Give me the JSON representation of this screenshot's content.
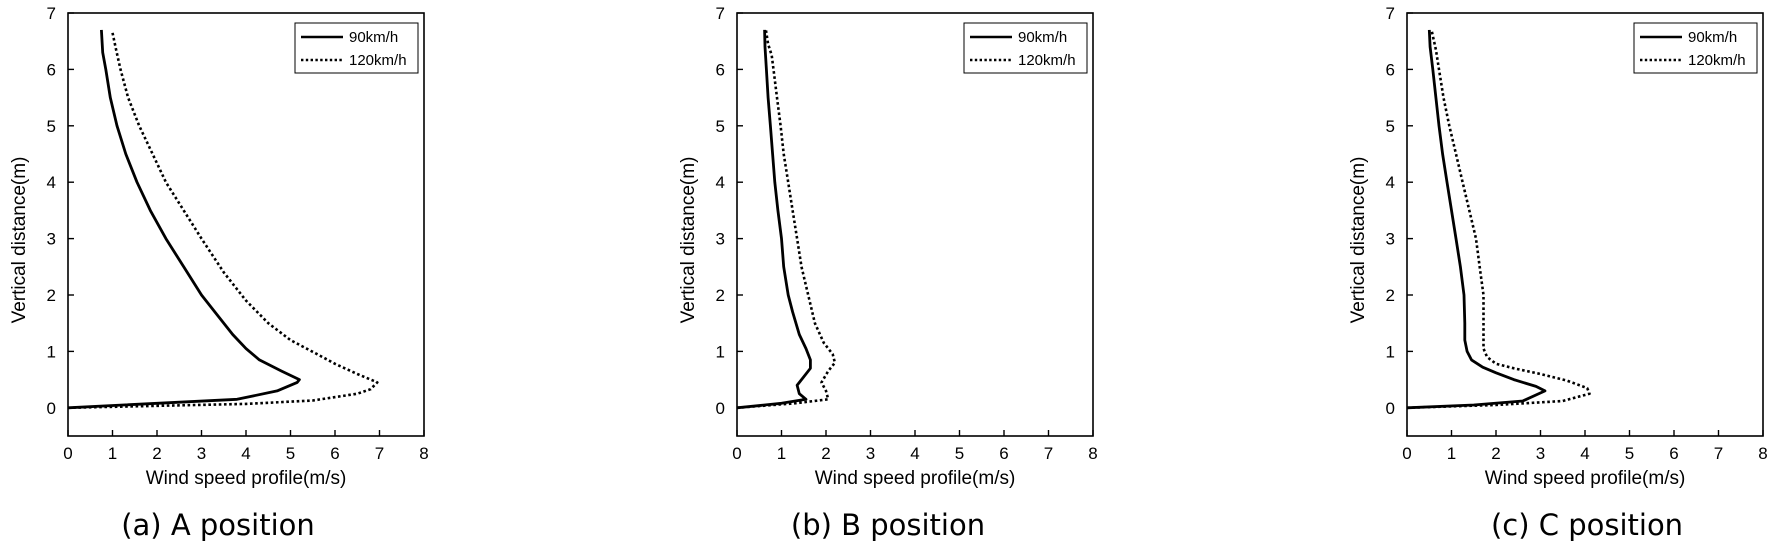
{
  "chart_data": [
    {
      "type": "line",
      "caption": "(a) A position",
      "xlabel": "Wind speed profile(m/s)",
      "ylabel": "Vertical distance(m)",
      "xlim": [
        0,
        8
      ],
      "ylim": [
        -0.5,
        7
      ],
      "xticks": [
        "0",
        "1",
        "2",
        "3",
        "4",
        "5",
        "6",
        "7",
        "8"
      ],
      "yticks": [
        "0",
        "1",
        "2",
        "3",
        "4",
        "5",
        "6",
        "7"
      ],
      "legend_position": "top-right",
      "series": [
        {
          "name": "90km/h",
          "style": "solid",
          "points": [
            [
              0,
              0
            ],
            [
              3.8,
              0.15
            ],
            [
              4.7,
              0.3
            ],
            [
              5.15,
              0.45
            ],
            [
              5.2,
              0.5
            ],
            [
              4.8,
              0.65
            ],
            [
              4.3,
              0.85
            ],
            [
              4.0,
              1.05
            ],
            [
              3.7,
              1.3
            ],
            [
              3.3,
              1.7
            ],
            [
              3.0,
              2.0
            ],
            [
              2.6,
              2.5
            ],
            [
              2.2,
              3.0
            ],
            [
              1.85,
              3.5
            ],
            [
              1.55,
              4.0
            ],
            [
              1.3,
              4.5
            ],
            [
              1.1,
              5.0
            ],
            [
              0.95,
              5.5
            ],
            [
              0.85,
              6.0
            ],
            [
              0.78,
              6.3
            ],
            [
              0.75,
              6.7
            ]
          ]
        },
        {
          "name": "120km/h",
          "style": "dotted",
          "points": [
            [
              0,
              0
            ],
            [
              4.0,
              0.07
            ],
            [
              5.5,
              0.13
            ],
            [
              6.5,
              0.25
            ],
            [
              6.8,
              0.33
            ],
            [
              6.95,
              0.45
            ],
            [
              6.5,
              0.6
            ],
            [
              6.0,
              0.78
            ],
            [
              5.6,
              0.95
            ],
            [
              5.0,
              1.2
            ],
            [
              4.5,
              1.5
            ],
            [
              4.0,
              1.9
            ],
            [
              3.5,
              2.4
            ],
            [
              3.0,
              3.0
            ],
            [
              2.6,
              3.5
            ],
            [
              2.2,
              4.0
            ],
            [
              1.9,
              4.5
            ],
            [
              1.6,
              5.0
            ],
            [
              1.35,
              5.5
            ],
            [
              1.18,
              6.0
            ],
            [
              1.08,
              6.35
            ],
            [
              1.0,
              6.65
            ]
          ]
        }
      ]
    },
    {
      "type": "line",
      "caption": "(b) B position",
      "xlabel": "Wind speed profile(m/s)",
      "ylabel": "Vertical distance(m)",
      "xlim": [
        0,
        8
      ],
      "ylim": [
        -0.5,
        7
      ],
      "xticks": [
        "0",
        "1",
        "2",
        "3",
        "4",
        "5",
        "6",
        "7",
        "8"
      ],
      "yticks": [
        "0",
        "1",
        "2",
        "3",
        "4",
        "5",
        "6",
        "7"
      ],
      "legend_position": "top-right",
      "series": [
        {
          "name": "90km/h",
          "style": "solid",
          "points": [
            [
              0,
              0
            ],
            [
              1.0,
              0.08
            ],
            [
              1.55,
              0.15
            ],
            [
              1.4,
              0.25
            ],
            [
              1.35,
              0.4
            ],
            [
              1.5,
              0.55
            ],
            [
              1.65,
              0.7
            ],
            [
              1.65,
              0.85
            ],
            [
              1.55,
              1.05
            ],
            [
              1.4,
              1.3
            ],
            [
              1.25,
              1.7
            ],
            [
              1.15,
              2.0
            ],
            [
              1.05,
              2.5
            ],
            [
              1.0,
              3.0
            ],
            [
              0.92,
              3.5
            ],
            [
              0.85,
              4.0
            ],
            [
              0.8,
              4.5
            ],
            [
              0.75,
              5.0
            ],
            [
              0.7,
              5.5
            ],
            [
              0.66,
              6.0
            ],
            [
              0.63,
              6.4
            ],
            [
              0.62,
              6.7
            ]
          ]
        },
        {
          "name": "120km/h",
          "style": "dotted",
          "points": [
            [
              0,
              0
            ],
            [
              1.3,
              0.08
            ],
            [
              2.05,
              0.15
            ],
            [
              2.0,
              0.3
            ],
            [
              1.9,
              0.45
            ],
            [
              2.05,
              0.65
            ],
            [
              2.2,
              0.8
            ],
            [
              2.15,
              0.95
            ],
            [
              1.95,
              1.15
            ],
            [
              1.75,
              1.5
            ],
            [
              1.6,
              2.0
            ],
            [
              1.45,
              2.5
            ],
            [
              1.35,
              3.0
            ],
            [
              1.25,
              3.5
            ],
            [
              1.15,
              4.0
            ],
            [
              1.05,
              4.5
            ],
            [
              0.98,
              5.0
            ],
            [
              0.9,
              5.5
            ],
            [
              0.82,
              6.0
            ],
            [
              0.78,
              6.25
            ],
            [
              0.7,
              6.45
            ],
            [
              0.65,
              6.7
            ]
          ]
        }
      ]
    },
    {
      "type": "line",
      "caption": "(c) C position",
      "xlabel": "Wind speed profile(m/s)",
      "ylabel": "Vertical distance(m)",
      "xlim": [
        0,
        8
      ],
      "ylim": [
        -0.5,
        7
      ],
      "xticks": [
        "0",
        "1",
        "2",
        "3",
        "4",
        "5",
        "6",
        "7",
        "8"
      ],
      "yticks": [
        "0",
        "1",
        "2",
        "3",
        "4",
        "5",
        "6",
        "7"
      ],
      "legend_position": "top-right",
      "series": [
        {
          "name": "90km/h",
          "style": "solid",
          "points": [
            [
              0,
              0
            ],
            [
              1.5,
              0.05
            ],
            [
              2.6,
              0.12
            ],
            [
              3.1,
              0.3
            ],
            [
              2.9,
              0.38
            ],
            [
              2.4,
              0.5
            ],
            [
              2.0,
              0.62
            ],
            [
              1.7,
              0.72
            ],
            [
              1.45,
              0.85
            ],
            [
              1.35,
              1.0
            ],
            [
              1.3,
              1.2
            ],
            [
              1.3,
              1.5
            ],
            [
              1.28,
              2.0
            ],
            [
              1.2,
              2.5
            ],
            [
              1.1,
              3.0
            ],
            [
              1.0,
              3.5
            ],
            [
              0.9,
              4.0
            ],
            [
              0.8,
              4.5
            ],
            [
              0.72,
              5.0
            ],
            [
              0.65,
              5.5
            ],
            [
              0.58,
              6.0
            ],
            [
              0.52,
              6.4
            ],
            [
              0.5,
              6.7
            ]
          ]
        },
        {
          "name": "120km/h",
          "style": "dotted",
          "points": [
            [
              0,
              0
            ],
            [
              2.0,
              0.05
            ],
            [
              3.5,
              0.12
            ],
            [
              4.1,
              0.25
            ],
            [
              4.05,
              0.35
            ],
            [
              3.6,
              0.48
            ],
            [
              3.0,
              0.6
            ],
            [
              2.4,
              0.7
            ],
            [
              2.0,
              0.78
            ],
            [
              1.8,
              0.9
            ],
            [
              1.72,
              1.05
            ],
            [
              1.72,
              1.5
            ],
            [
              1.72,
              2.0
            ],
            [
              1.65,
              2.4
            ],
            [
              1.55,
              3.0
            ],
            [
              1.4,
              3.5
            ],
            [
              1.25,
              4.0
            ],
            [
              1.1,
              4.5
            ],
            [
              0.95,
              5.0
            ],
            [
              0.82,
              5.5
            ],
            [
              0.72,
              6.0
            ],
            [
              0.65,
              6.35
            ],
            [
              0.55,
              6.7
            ]
          ]
        }
      ]
    }
  ]
}
